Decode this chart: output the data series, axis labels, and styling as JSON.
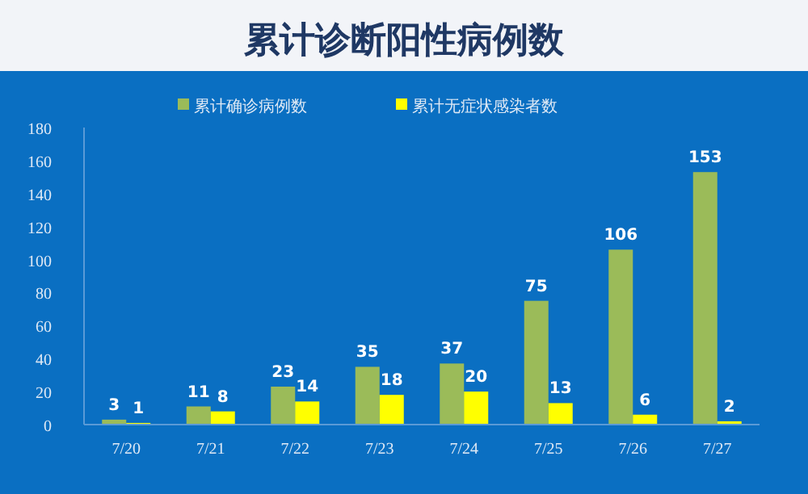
{
  "chart_data": {
    "type": "bar",
    "title": "累计诊断阳性病例数",
    "categories": [
      "7/20",
      "7/21",
      "7/22",
      "7/23",
      "7/24",
      "7/25",
      "7/26",
      "7/27"
    ],
    "series": [
      {
        "name": "累计确诊病例数",
        "color": "#9bbb59",
        "values": [
          3,
          11,
          23,
          35,
          37,
          75,
          106,
          153
        ]
      },
      {
        "name": "累计无症状感染者数",
        "color": "#ffff00",
        "values": [
          1,
          8,
          14,
          18,
          20,
          13,
          6,
          2
        ]
      }
    ],
    "ylim": [
      0,
      180
    ],
    "yticks": [
      0,
      20,
      40,
      60,
      80,
      100,
      120,
      140,
      160,
      180
    ],
    "data_labels": true,
    "legend": "top",
    "grid": false
  }
}
